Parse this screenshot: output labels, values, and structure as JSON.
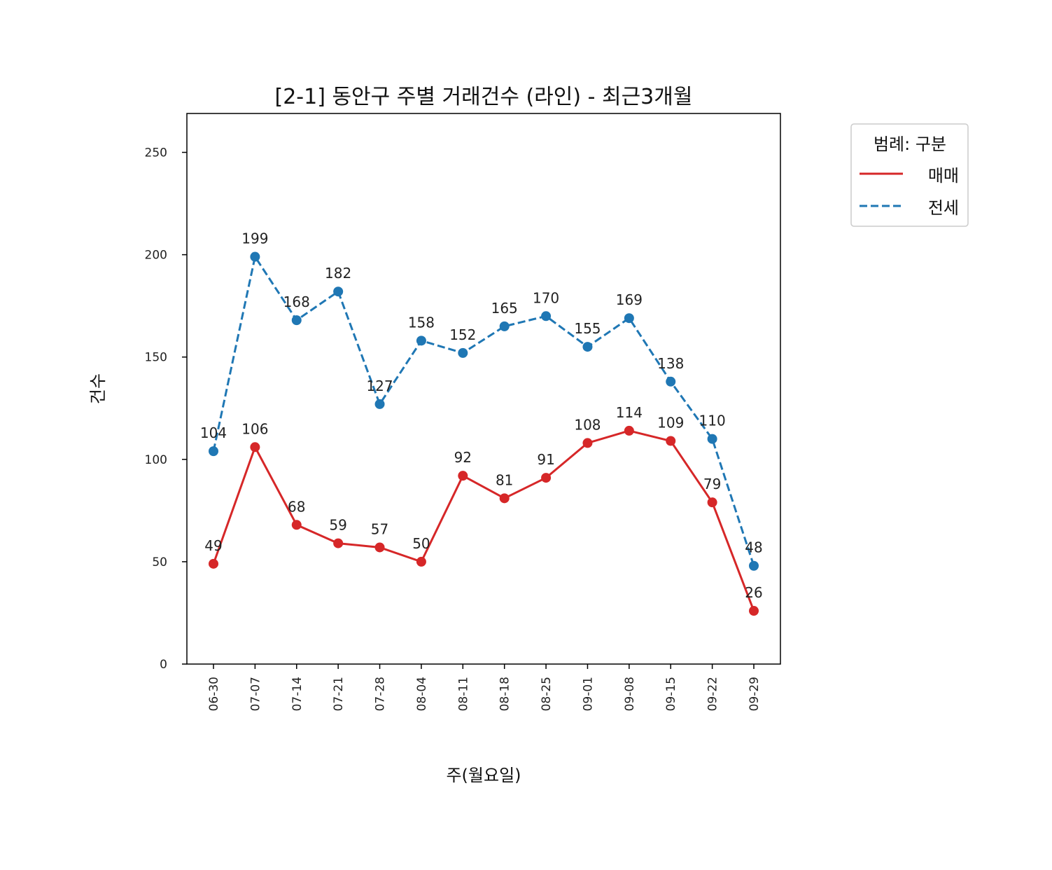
{
  "chart_data": {
    "type": "line",
    "title": "[2-1] 동안구 주별 거래건수 (라인) - 최근3개월",
    "xlabel": "주(월요일)",
    "ylabel": "건수",
    "categories": [
      "06-30",
      "07-07",
      "07-14",
      "07-21",
      "07-28",
      "08-04",
      "08-11",
      "08-18",
      "08-25",
      "09-01",
      "09-08",
      "09-15",
      "09-22",
      "09-29"
    ],
    "ylim": [
      0,
      269
    ],
    "yticks": [
      0,
      50,
      100,
      150,
      200,
      250
    ],
    "grid": false,
    "legend": {
      "title": "범례: 구분",
      "placement": "outside-top-right"
    },
    "series": [
      {
        "name": "매매",
        "color": "#d62728",
        "style": "solid",
        "marker": "circle",
        "values": [
          49,
          106,
          68,
          59,
          57,
          50,
          92,
          81,
          91,
          108,
          114,
          109,
          79,
          26
        ]
      },
      {
        "name": "전세",
        "color": "#1f77b4",
        "style": "dashed",
        "marker": "circle",
        "values": [
          104,
          199,
          168,
          182,
          127,
          158,
          152,
          165,
          170,
          155,
          169,
          138,
          110,
          48
        ]
      }
    ]
  }
}
